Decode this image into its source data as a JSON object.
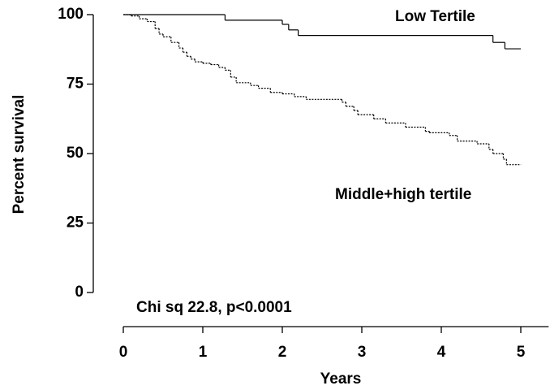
{
  "chart_data": {
    "type": "step",
    "x_label": "Years",
    "y_label": "Percent survival",
    "xlim": [
      0,
      5.35
    ],
    "xticks": [
      0,
      1,
      2,
      3,
      4,
      5
    ],
    "ylim": [
      0,
      100
    ],
    "yticks": [
      0,
      25,
      50,
      75,
      100
    ],
    "annotations": [
      "Low Tertile",
      "Middle+high tertile",
      "Chi sq 22.8, p<0.0001"
    ],
    "series": [
      {
        "name": "Low Tertile",
        "color": "#000000",
        "style": "solid",
        "x": [
          0,
          1.28,
          2.0,
          2.08,
          2.2,
          4.65,
          4.8,
          5
        ],
        "values": [
          100,
          98,
          96.5,
          94.5,
          92.5,
          90,
          87.7,
          87.7
        ]
      },
      {
        "name": "Middle+high tertile",
        "color": "#000000",
        "style": "dotted",
        "x": [
          0,
          0.1,
          0.2,
          0.3,
          0.4,
          0.45,
          0.5,
          0.6,
          0.7,
          0.75,
          0.8,
          0.85,
          0.9,
          1.0,
          1.1,
          1.2,
          1.28,
          1.35,
          1.42,
          1.6,
          1.7,
          1.85,
          2.0,
          2.15,
          2.3,
          2.75,
          2.8,
          2.9,
          2.95,
          3.15,
          3.3,
          3.55,
          3.8,
          3.85,
          4.1,
          4.2,
          4.45,
          4.6,
          4.65,
          4.78,
          4.82,
          5
        ],
        "values": [
          100,
          99.5,
          98.5,
          97.5,
          95,
          93,
          92,
          90,
          88,
          86.5,
          85,
          84,
          83,
          82.5,
          82,
          81,
          80,
          77.5,
          75.5,
          74.5,
          73.5,
          72,
          71.5,
          70.5,
          69.5,
          68.5,
          67,
          65.5,
          64,
          62.5,
          61,
          59.5,
          58,
          57.5,
          56.5,
          54.5,
          53.5,
          51.5,
          50,
          48,
          46,
          46
        ]
      }
    ]
  }
}
